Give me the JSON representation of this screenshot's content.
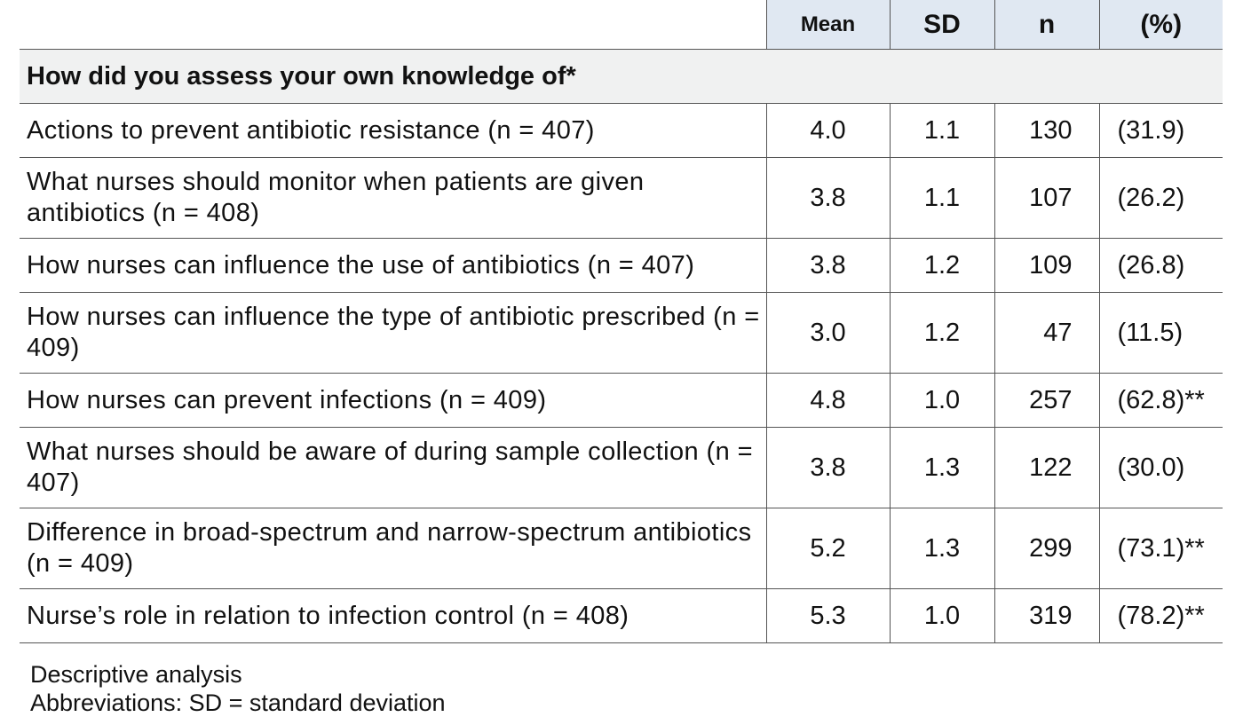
{
  "table": {
    "headers": {
      "mean": "Mean",
      "sd": "SD",
      "n": "n",
      "pct": "(%)"
    },
    "section_title": "How did you assess your own knowledge of*",
    "rows": [
      {
        "label": "Actions to prevent antibiotic resistance (n = 407)",
        "mean": "4.0",
        "sd": "1.1",
        "n": "130",
        "pct": "(31.9)"
      },
      {
        "label": "What nurses should monitor when patients are given antibiotics (n = 408)",
        "mean": "3.8",
        "sd": "1.1",
        "n": "107",
        "pct": "(26.2)"
      },
      {
        "label": "How nurses can influence the use of antibiotics (n = 407)",
        "mean": "3.8",
        "sd": "1.2",
        "n": "109",
        "pct": "(26.8)"
      },
      {
        "label": "How nurses can influence the type of antibiotic prescribed (n = 409)",
        "mean": "3.0",
        "sd": "1.2",
        "n": "47",
        "pct": "(11.5)"
      },
      {
        "label": "How nurses can prevent infections (n = 409)",
        "mean": "4.8",
        "sd": "1.0",
        "n": "257",
        "pct": "(62.8)**"
      },
      {
        "label": "What nurses should be aware of during sample collection (n = 407)",
        "mean": "3.8",
        "sd": "1.3",
        "n": "122",
        "pct": "(30.0)"
      },
      {
        "label": "Difference in broad-spectrum and narrow-spectrum antibiotics (n = 409)",
        "mean": "5.2",
        "sd": "1.3",
        "n": "299",
        "pct": "(73.1)**"
      },
      {
        "label": "Nurse’s role in relation to infection control (n = 408)",
        "mean": "5.3",
        "sd": "1.0",
        "n": "319",
        "pct": "(78.2)**"
      }
    ]
  },
  "footnotes": {
    "line1": "Descriptive analysis",
    "line2": "Abbreviations: SD = standard deviation"
  }
}
